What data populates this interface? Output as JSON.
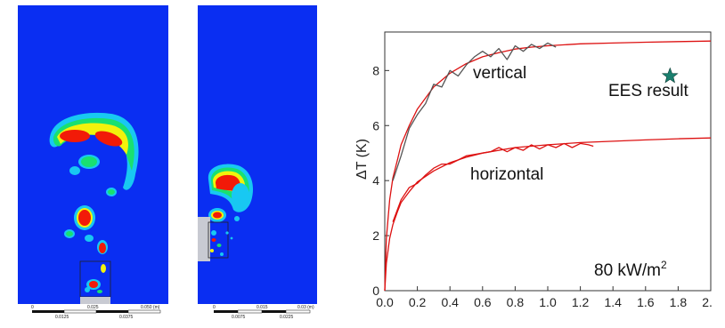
{
  "colors": {
    "field_blue": "#0a2ef2",
    "hot_red": "#f21a08",
    "ring_yellow": "#f2f20c",
    "ring_green": "#19e070",
    "ring_cyan": "#18c8f2",
    "inset_gray": "#c8cad2",
    "curve_red": "#dd1111",
    "curve_gray": "#555555",
    "star_teal": "#1a7f6e"
  },
  "scale_bar_left": {
    "top_labels": [
      "0",
      "0.025",
      "0.050 (m)"
    ],
    "bottom_labels": [
      "0.0125",
      "0.0375"
    ]
  },
  "scale_bar_right": {
    "top_labels": [
      "0",
      "0.015",
      "0.03 (m)"
    ],
    "bottom_labels": [
      "0.0075",
      "0.0225"
    ]
  },
  "chart_data": {
    "type": "line",
    "ylabel": "ΔT (K)",
    "xlim": [
      0.0,
      2.0
    ],
    "ylim": [
      0,
      9.4
    ],
    "x_ticks": [
      "0.0",
      "0.2",
      "0.4",
      "0.6",
      "0.8",
      "1.0",
      "1.2",
      "1.4",
      "1.6",
      "1.8",
      "2.0"
    ],
    "y_ticks": [
      "0",
      "2",
      "4",
      "6",
      "8"
    ],
    "annotations": {
      "vertical": "vertical",
      "horizontal": "horizontal",
      "ees": "EES result",
      "heat_flux_value": "80 kW/m",
      "heat_flux_sup": "2"
    },
    "ees_point": {
      "x": 1.75,
      "y": 7.8
    },
    "series": [
      {
        "color": "#dd1111",
        "x": [
          0.0,
          0.01,
          0.03,
          0.05,
          0.08,
          0.1,
          0.15,
          0.2,
          0.25,
          0.3,
          0.4,
          0.5,
          0.6,
          0.7,
          0.8,
          0.9,
          1.0,
          1.2,
          1.4,
          1.6,
          1.8,
          2.0
        ],
        "y": [
          0.0,
          1.9,
          3.3,
          4.1,
          4.8,
          5.3,
          6.0,
          6.6,
          7.0,
          7.4,
          7.9,
          8.25,
          8.5,
          8.65,
          8.78,
          8.85,
          8.9,
          8.97,
          9.0,
          9.03,
          9.05,
          9.07
        ]
      },
      {
        "color": "#555555",
        "x": [
          0.05,
          0.1,
          0.15,
          0.2,
          0.25,
          0.3,
          0.35,
          0.4,
          0.45,
          0.5,
          0.55,
          0.6,
          0.65,
          0.7,
          0.75,
          0.8,
          0.85,
          0.9,
          0.95,
          1.0,
          1.05
        ],
        "y": [
          4.0,
          4.9,
          5.9,
          6.4,
          6.8,
          7.5,
          7.4,
          8.0,
          7.8,
          8.2,
          8.5,
          8.7,
          8.5,
          8.8,
          8.4,
          8.9,
          8.7,
          8.95,
          8.8,
          9.0,
          8.85
        ]
      },
      {
        "color": "#dd1111",
        "x": [
          0.0,
          0.01,
          0.03,
          0.05,
          0.08,
          0.1,
          0.15,
          0.2,
          0.3,
          0.4,
          0.5,
          0.6,
          0.8,
          1.0,
          1.2,
          1.4,
          1.6,
          1.8,
          2.0
        ],
        "y": [
          0.0,
          1.0,
          1.9,
          2.4,
          2.9,
          3.2,
          3.6,
          3.95,
          4.35,
          4.65,
          4.85,
          5.0,
          5.2,
          5.3,
          5.38,
          5.43,
          5.48,
          5.52,
          5.55
        ]
      },
      {
        "color": "#dd1111",
        "x": [
          0.05,
          0.1,
          0.15,
          0.2,
          0.25,
          0.3,
          0.35,
          0.4,
          0.45,
          0.5,
          0.55,
          0.6,
          0.65,
          0.7,
          0.75,
          0.8,
          0.85,
          0.9,
          0.95,
          1.0,
          1.05,
          1.1,
          1.15,
          1.2,
          1.25,
          1.28
        ],
        "y": [
          2.5,
          3.3,
          3.75,
          3.9,
          4.2,
          4.45,
          4.6,
          4.6,
          4.75,
          4.9,
          4.95,
          5.0,
          5.05,
          5.2,
          5.05,
          5.2,
          5.1,
          5.3,
          5.15,
          5.3,
          5.2,
          5.35,
          5.2,
          5.35,
          5.3,
          5.25
        ]
      }
    ]
  }
}
